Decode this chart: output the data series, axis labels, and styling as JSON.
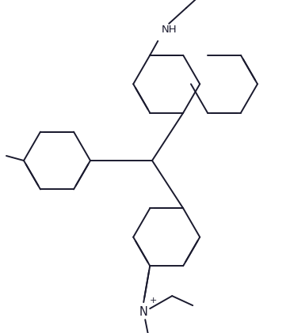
{
  "bg_color": "#ffffff",
  "line_color": "#1a1a2e",
  "lw": 1.4,
  "fs": 9.5,
  "dbo": 0.018,
  "r": 0.085,
  "figsize": [
    3.66,
    4.21
  ],
  "dpi": 100
}
